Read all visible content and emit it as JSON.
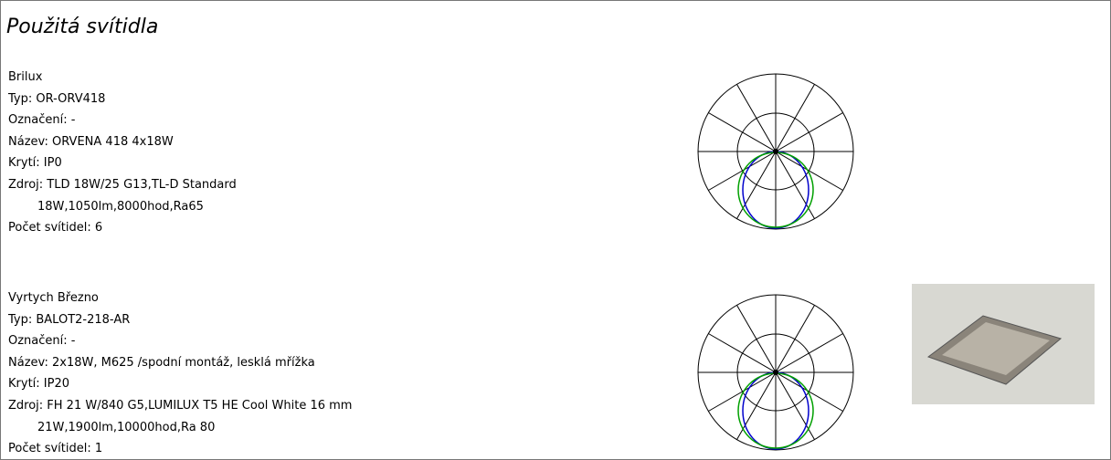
{
  "title": "Použitá svítidla",
  "luminaires": [
    {
      "manufacturer": "Brilux",
      "type": "Typ: OR-ORV418",
      "marking": "Označení: -",
      "name": "Název: ORVENA 418 4x18W",
      "protection": "Krytí: IP0",
      "source": "Zdroj: TLD 18W/25 G13,TL-D Standard",
      "source_detail": "18W,1050lm,8000hod,Ra65",
      "count": "Počet svítidel: 6"
    },
    {
      "manufacturer": "Vyrtych Březno",
      "type": "Typ: BALOT2-218-AR",
      "marking": "Označení: -",
      "name": "Název: 2x18W, M625 /spodní montáž, lesklá mřížka",
      "protection": "Krytí: IP20",
      "source": "Zdroj: FH 21 W/840 G5,LUMILUX T5 HE Cool White 16 mm",
      "source_detail": "21W,1900lm,10000hod,Ra 80",
      "count": "Počet svítidel: 1"
    }
  ]
}
